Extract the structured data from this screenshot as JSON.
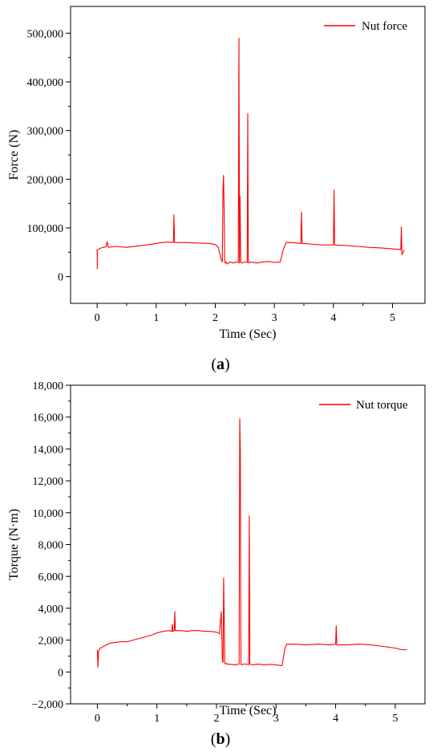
{
  "chart_data": [
    {
      "type": "line",
      "panel": "a",
      "caption": [
        "(",
        "a",
        ")"
      ],
      "xlabel": "Time (Sec)",
      "ylabel": "Force (N)",
      "xlim": [
        -0.45,
        5.55
      ],
      "ylim": [
        -55000,
        555000
      ],
      "xticks": [
        0,
        1,
        2,
        3,
        4,
        5
      ],
      "xtick_labels": [
        "0",
        "1",
        "2",
        "3",
        "4",
        "5"
      ],
      "yticks": [
        0,
        100000,
        200000,
        300000,
        400000,
        500000
      ],
      "ytick_labels": [
        "0",
        "100,000",
        "200,000",
        "300,000",
        "400,000",
        "500,000"
      ],
      "grid": false,
      "legend": "top-right",
      "color": "#ff0000",
      "series": [
        {
          "name": "Nut force",
          "x": [
            0.0,
            0.002,
            0.003,
            0.05,
            0.1,
            0.15,
            0.17,
            0.19,
            0.3,
            0.5,
            0.7,
            0.9,
            1.0,
            1.1,
            1.2,
            1.29,
            1.3,
            1.31,
            1.5,
            1.7,
            1.9,
            2.0,
            2.05,
            2.08,
            2.1,
            2.12,
            2.13,
            2.14,
            2.15,
            2.16,
            2.17,
            2.18,
            2.2,
            2.25,
            2.3,
            2.35,
            2.39,
            2.4,
            2.41,
            2.42,
            2.43,
            2.45,
            2.5,
            2.54,
            2.55,
            2.56,
            2.57,
            2.6,
            2.7,
            2.8,
            2.9,
            3.0,
            3.1,
            3.15,
            3.2,
            3.3,
            3.45,
            3.46,
            3.47,
            3.6,
            3.8,
            4.0,
            4.01,
            4.02,
            4.2,
            4.4,
            4.6,
            4.8,
            5.0,
            5.1,
            5.14,
            5.15,
            5.16,
            5.2
          ],
          "y": [
            56000,
            16000,
            55000,
            58000,
            60000,
            61000,
            72000,
            60000,
            62000,
            60000,
            63000,
            66000,
            68000,
            70000,
            71000,
            70000,
            127000,
            70000,
            70000,
            69000,
            68000,
            66000,
            60000,
            45000,
            35000,
            30000,
            180000,
            208000,
            140000,
            30000,
            28000,
            30000,
            26000,
            30000,
            28000,
            30000,
            29000,
            490000,
            28000,
            165000,
            30000,
            28000,
            30000,
            29000,
            335000,
            30000,
            28000,
            30000,
            28000,
            30000,
            31000,
            29000,
            30000,
            55000,
            70000,
            70000,
            68000,
            133000,
            68000,
            67000,
            65000,
            65000,
            178000,
            65000,
            64000,
            62000,
            60000,
            59000,
            57000,
            56000,
            55000,
            102000,
            45000,
            55000
          ]
        }
      ]
    },
    {
      "type": "line",
      "panel": "b",
      "caption": [
        "(",
        "b",
        ")"
      ],
      "xlabel": "Time (Sec)",
      "ylabel": "Torque (N·m)",
      "xlim": [
        -0.45,
        5.5
      ],
      "ylim": [
        -2000,
        18000
      ],
      "xticks": [
        0,
        1,
        2,
        3,
        4,
        5
      ],
      "xtick_labels": [
        "0",
        "1",
        "2",
        "3",
        "4",
        "5"
      ],
      "yticks": [
        -2000,
        0,
        2000,
        4000,
        6000,
        8000,
        10000,
        12000,
        14000,
        16000,
        18000
      ],
      "ytick_labels": [
        "−2,000",
        "0",
        "2,000",
        "4,000",
        "6,000",
        "8,000",
        "10,000",
        "12,000",
        "14,000",
        "16,000",
        "18,000"
      ],
      "grid": false,
      "legend": "top-right",
      "color": "#ff0000",
      "series": [
        {
          "name": "Nut torque",
          "x": [
            0.0,
            0.01,
            0.02,
            0.05,
            0.1,
            0.15,
            0.2,
            0.3,
            0.4,
            0.5,
            0.6,
            0.7,
            0.8,
            0.9,
            1.0,
            1.1,
            1.2,
            1.25,
            1.26,
            1.27,
            1.29,
            1.3,
            1.31,
            1.4,
            1.5,
            1.6,
            1.7,
            1.8,
            1.9,
            2.0,
            2.05,
            2.08,
            2.1,
            2.11,
            2.12,
            2.13,
            2.14,
            2.15,
            2.16,
            2.18,
            2.2,
            2.3,
            2.38,
            2.39,
            2.4,
            2.41,
            2.42,
            2.45,
            2.5,
            2.54,
            2.55,
            2.56,
            2.6,
            2.7,
            2.8,
            2.9,
            3.0,
            3.1,
            3.15,
            3.18,
            3.3,
            3.5,
            3.7,
            3.9,
            4.0,
            4.01,
            4.02,
            4.2,
            4.4,
            4.6,
            4.8,
            5.0,
            5.1,
            5.2
          ],
          "y": [
            1400,
            300,
            1300,
            1500,
            1600,
            1700,
            1800,
            1850,
            1900,
            1900,
            2000,
            2100,
            2200,
            2300,
            2450,
            2550,
            2600,
            2550,
            3000,
            2550,
            2600,
            3800,
            2600,
            2600,
            2550,
            2600,
            2600,
            2550,
            2550,
            2500,
            2400,
            3800,
            700,
            600,
            5900,
            3200,
            600,
            500,
            550,
            500,
            500,
            450,
            500,
            15900,
            13900,
            500,
            450,
            500,
            500,
            450,
            9800,
            500,
            450,
            500,
            450,
            480,
            450,
            400,
            1500,
            1750,
            1750,
            1700,
            1750,
            1700,
            1750,
            2900,
            1700,
            1700,
            1750,
            1700,
            1600,
            1500,
            1400,
            1400
          ]
        }
      ]
    }
  ]
}
